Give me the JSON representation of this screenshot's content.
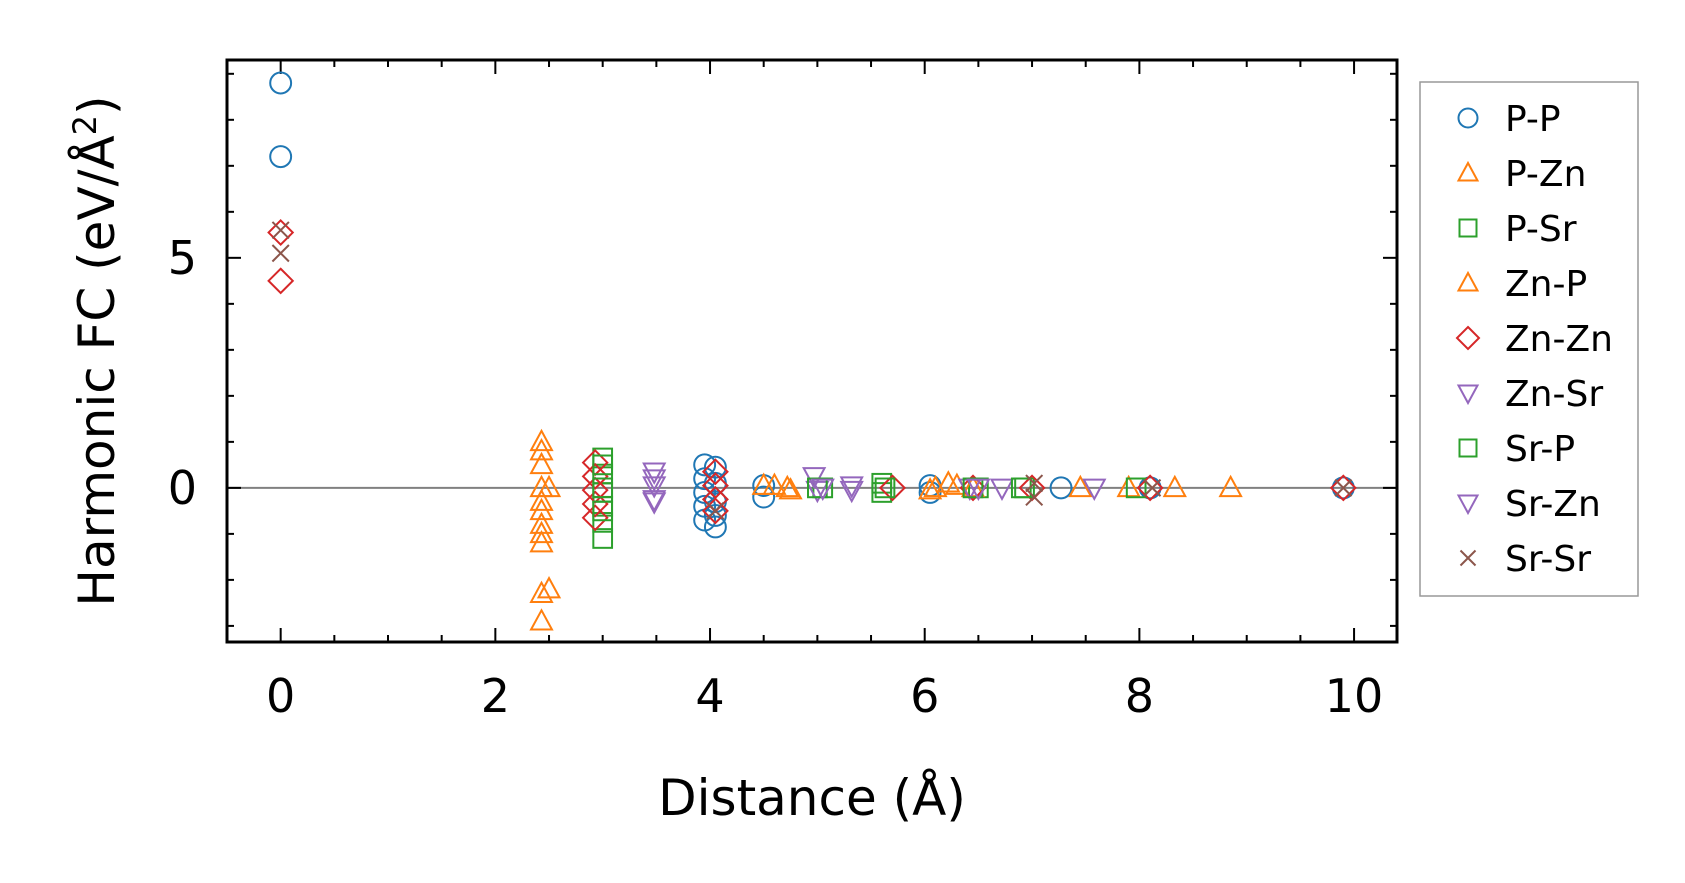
{
  "chart_data": {
    "type": "scatter",
    "title": "",
    "xlabel": "Distance (Å)",
    "ylabel_main": "Harmonic FC (eV/Å",
    "ylabel_sup": "2",
    "ylabel_close": ")",
    "xlim": [
      -0.5,
      10.4
    ],
    "ylim": [
      -3.35,
      9.3
    ],
    "xticks": [
      0,
      2,
      4,
      6,
      8,
      10
    ],
    "xtick_labels": [
      "0",
      "2",
      "4",
      "6",
      "8",
      "10"
    ],
    "xminor_step": 0.5,
    "yticks": [
      0,
      5
    ],
    "ytick_labels": [
      "0",
      "5"
    ],
    "yminor_step": 1,
    "zero_line": 0,
    "legend_position": "right-outside",
    "colors": {
      "blue": "#1f77b4",
      "orange": "#ff7f0e",
      "green": "#2ca02c",
      "red": "#d62728",
      "purple": "#9467bd",
      "brown": "#8c564b",
      "zero_line": "#808080"
    },
    "series": [
      {
        "name": "P-P",
        "marker": "circle",
        "color": "#1f77b4",
        "x": [
          0,
          0,
          3.95,
          3.95,
          3.95,
          3.95,
          3.95,
          4.05,
          4.05,
          4.05,
          4.05,
          4.05,
          4.5,
          4.5,
          6.05,
          6.05,
          7.27,
          8.1,
          9.9
        ],
        "y": [
          8.8,
          7.2,
          0.5,
          0.2,
          -0.1,
          -0.4,
          -0.7,
          0.45,
          0.1,
          -0.3,
          -0.6,
          -0.85,
          0.05,
          -0.2,
          0.05,
          -0.1,
          0.0,
          0.0,
          0.0
        ]
      },
      {
        "name": "P-Zn",
        "marker": "triangle-up",
        "color": "#ff7f0e",
        "x": [
          2.43,
          2.43,
          2.43,
          2.43,
          2.43,
          2.43,
          2.43,
          2.5,
          2.5,
          4.5,
          4.72,
          6.05,
          6.22,
          7.45,
          7.9,
          8.33,
          8.85
        ],
        "y": [
          1.0,
          0.5,
          -0.3,
          -0.8,
          -1.2,
          -2.3,
          -2.9,
          0.0,
          -2.2,
          0.05,
          0.0,
          -0.05,
          0.1,
          0.0,
          0.0,
          0.0,
          0.0
        ]
      },
      {
        "name": "P-Sr",
        "marker": "square",
        "color": "#2ca02c",
        "x": [
          3.0,
          3.0,
          3.0,
          3.0,
          3.0,
          3.0,
          5.05,
          5.6,
          5.6,
          6.5,
          6.93,
          7.97
        ],
        "y": [
          0.65,
          0.3,
          -0.1,
          -0.4,
          -0.75,
          -1.1,
          0.0,
          0.1,
          -0.1,
          0.0,
          0.0,
          0.0
        ]
      },
      {
        "name": "Zn-P",
        "marker": "triangle-up",
        "color": "#ff7f0e",
        "x": [
          2.43,
          2.43,
          2.43,
          2.43,
          4.6,
          4.75,
          6.1,
          6.3,
          6.45
        ],
        "y": [
          0.8,
          0.0,
          -0.5,
          -1.0,
          0.05,
          -0.05,
          0.0,
          0.05,
          0.0
        ]
      },
      {
        "name": "Zn-Zn",
        "marker": "diamond",
        "color": "#d62728",
        "x": [
          0,
          0,
          2.93,
          2.93,
          2.93,
          2.93,
          2.93,
          4.05,
          4.05,
          4.05,
          4.05,
          5.7,
          6.45,
          7.0,
          8.1,
          9.9
        ],
        "y": [
          5.55,
          4.5,
          0.55,
          0.25,
          -0.05,
          -0.35,
          -0.65,
          0.35,
          0.05,
          -0.25,
          -0.5,
          0.0,
          0.0,
          0.0,
          0.0,
          0.0
        ]
      },
      {
        "name": "Zn-Sr",
        "marker": "triangle-down",
        "color": "#9467bd",
        "x": [
          3.48,
          3.48,
          3.48,
          4.97,
          5.0,
          5.32,
          6.42,
          6.72,
          7.58
        ],
        "y": [
          0.35,
          0.05,
          -0.25,
          0.25,
          -0.05,
          0.05,
          0.0,
          0.0,
          0.0
        ]
      },
      {
        "name": "Sr-P",
        "marker": "square",
        "color": "#2ca02c",
        "x": [
          3.0,
          3.0,
          3.0,
          5.0,
          5.63,
          6.45,
          6.9
        ],
        "y": [
          0.5,
          0.0,
          -0.5,
          0.0,
          0.0,
          0.0,
          0.0
        ]
      },
      {
        "name": "Sr-Zn",
        "marker": "triangle-down",
        "color": "#9467bd",
        "x": [
          3.48,
          3.48,
          5.05,
          5.32,
          6.5
        ],
        "y": [
          0.2,
          -0.3,
          0.0,
          -0.05,
          0.0
        ]
      },
      {
        "name": "Sr-Sr",
        "marker": "x",
        "color": "#8c564b",
        "x": [
          0,
          0,
          4.05,
          7.02,
          7.02,
          8.12,
          9.9
        ],
        "y": [
          5.6,
          5.1,
          -0.5,
          0.1,
          -0.2,
          0.0,
          0.0
        ]
      }
    ]
  }
}
